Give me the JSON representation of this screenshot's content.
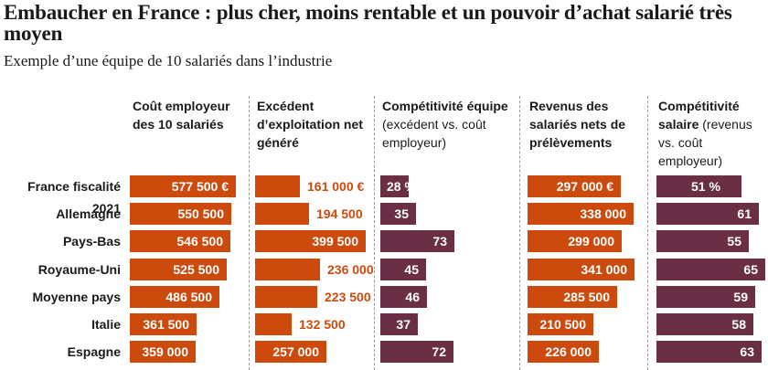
{
  "title": "Embaucher en France : plus cher, moins rentable et un pouvoir d’achat salarié très moyen",
  "subtitle": "Exemple d’une équipe de 10 salariés dans l’industrie",
  "colors": {
    "orange": "#cc4a0c",
    "purple": "#6a2f44",
    "divider": "#9a9a9a"
  },
  "chart_data": {
    "type": "bar",
    "orientation": "horizontal",
    "categories": [
      "France fiscalité 2021",
      "Allemagne",
      "Pays-Bas",
      "Royaume-Uni",
      "Moyenne pays",
      "Italie",
      "Espagne"
    ],
    "series": [
      {
        "name": "Coût employeur des 10 salariés",
        "name_bold": "Coût employeur des 10 salariés",
        "name_rest": "",
        "color": "#cc4a0c",
        "values": [
          577500,
          550500,
          546500,
          525500,
          486500,
          361500,
          359000
        ],
        "labels": [
          "577 500 €",
          "550 500",
          "546 500",
          "525 500",
          "486 500",
          "361 500",
          "359 000"
        ],
        "max": 577500
      },
      {
        "name": "Excédent d’exploitation net généré",
        "name_bold": "Excédent d’exploitation net généré",
        "name_rest": "",
        "color": "#cc4a0c",
        "values": [
          161000,
          194500,
          399500,
          236000,
          223500,
          132500,
          257000
        ],
        "labels": [
          "161 000 €",
          "194 500",
          "399 500",
          "236 000",
          "223 500",
          "132 500",
          "257 000"
        ],
        "max": 399500
      },
      {
        "name": "Compétitivité équipe (excédent vs. coût employeur)",
        "name_bold": "Compétitivité équipe",
        "name_rest": "(excédent vs. coût employeur)",
        "color": "#6a2f44",
        "values": [
          28,
          35,
          73,
          45,
          46,
          37,
          72
        ],
        "labels": [
          "28 %",
          "35",
          "73",
          "45",
          "46",
          "37",
          "72"
        ],
        "max": 73
      },
      {
        "name": "Revenus des salariés nets de prélèvements",
        "name_bold": "Revenus des salariés nets de prélèvements",
        "name_rest": "",
        "color": "#cc4a0c",
        "values": [
          297000,
          338000,
          299000,
          341000,
          285500,
          210500,
          226000
        ],
        "labels": [
          "297 000 €",
          "338 000",
          "299 000",
          "341 000",
          "285 500",
          "210 500",
          "226 000"
        ],
        "max": 341000
      },
      {
        "name": "Compétitivité salaire (revenus vs. coût employeur)",
        "name_bold": "Compétitivité salaire",
        "name_rest": "(revenus vs. coût employeur)",
        "color": "#6a2f44",
        "values": [
          51,
          61,
          55,
          65,
          59,
          58,
          63
        ],
        "labels": [
          "51 %",
          "61",
          "55",
          "65",
          "59",
          "58",
          "63"
        ],
        "max": 65
      }
    ]
  }
}
